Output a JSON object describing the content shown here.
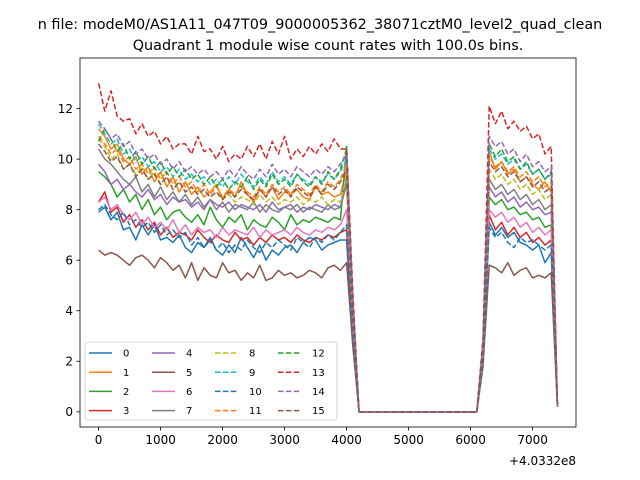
{
  "suptitle": "n file: modeM0/AS1A11_047T09_9000005362_38071cztM0_level2_quad_clean",
  "chart_data": {
    "type": "line",
    "title": "Quadrant 1 module wise count rates with 100.0s bins.",
    "xlabel": "",
    "ylabel": "",
    "x_offset_label": "+4.0332e8",
    "xlim": [
      -300,
      7700
    ],
    "ylim": [
      -0.6,
      14.0
    ],
    "xticks": [
      0,
      1000,
      2000,
      3000,
      4000,
      5000,
      6000,
      7000
    ],
    "xtick_labels": [
      "0",
      "1000",
      "2000",
      "3000",
      "4000",
      "5000",
      "6000",
      "7000"
    ],
    "yticks": [
      0,
      2,
      4,
      6,
      8,
      10,
      12
    ],
    "ytick_labels": [
      "0",
      "2",
      "4",
      "6",
      "8",
      "10",
      "12"
    ],
    "legend": {
      "position": "lower-left",
      "ncol": 4
    },
    "x": [
      0,
      100,
      200,
      300,
      400,
      500,
      600,
      700,
      800,
      900,
      1000,
      1100,
      1200,
      1300,
      1400,
      1500,
      1600,
      1700,
      1800,
      1900,
      2000,
      2100,
      2200,
      2300,
      2400,
      2500,
      2600,
      2700,
      2800,
      2900,
      3000,
      3100,
      3200,
      3300,
      3400,
      3500,
      3600,
      3700,
      3800,
      3900,
      4000,
      4100,
      4200,
      6100,
      6200,
      6300,
      6400,
      6500,
      6600,
      6700,
      6800,
      6900,
      7000,
      7100,
      7200,
      7300,
      7400
    ],
    "series": [
      {
        "name": "0",
        "color": "#1f77b4",
        "dash": "solid",
        "values": [
          7.9,
          8.1,
          7.6,
          7.9,
          7.2,
          7.3,
          6.8,
          7.4,
          7.0,
          7.4,
          6.8,
          6.9,
          6.7,
          7.0,
          6.5,
          6.3,
          6.7,
          6.5,
          6.9,
          6.4,
          6.2,
          6.6,
          6.3,
          6.9,
          6.5,
          6.1,
          6.6,
          6.0,
          6.4,
          6.2,
          6.5,
          6.6,
          6.3,
          6.7,
          6.9,
          6.8,
          6.4,
          6.6,
          6.7,
          6.8,
          6.8,
          3.0,
          0.0,
          0.0,
          2.0,
          7.5,
          7.0,
          7.3,
          6.9,
          7.1,
          6.7,
          6.6,
          6.4,
          6.6,
          5.9,
          6.3,
          0.2
        ]
      },
      {
        "name": "1",
        "color": "#ff7f0e",
        "dash": "solid",
        "values": [
          11.2,
          10.9,
          10.4,
          10.6,
          10.0,
          9.8,
          10.1,
          9.4,
          9.7,
          9.1,
          9.5,
          8.9,
          9.3,
          8.7,
          9.1,
          8.6,
          8.9,
          8.5,
          8.7,
          9.0,
          8.4,
          8.8,
          8.5,
          9.1,
          8.6,
          8.3,
          8.8,
          8.5,
          8.9,
          8.4,
          8.7,
          8.6,
          8.8,
          8.5,
          8.4,
          8.9,
          8.6,
          8.7,
          8.5,
          8.6,
          9.5,
          4.2,
          0.0,
          0.0,
          2.5,
          10.3,
          9.6,
          9.9,
          9.4,
          9.6,
          9.1,
          9.3,
          9.0,
          8.8,
          9.1,
          8.7,
          0.3
        ]
      },
      {
        "name": "2",
        "color": "#2ca02c",
        "dash": "solid",
        "values": [
          9.5,
          9.3,
          9.0,
          8.5,
          8.8,
          8.3,
          8.6,
          8.0,
          8.4,
          7.8,
          8.1,
          7.6,
          7.9,
          8.0,
          7.7,
          7.5,
          7.8,
          7.4,
          8.1,
          7.6,
          7.3,
          7.7,
          7.5,
          7.8,
          7.2,
          7.6,
          7.4,
          7.3,
          7.7,
          7.5,
          7.2,
          7.8,
          7.4,
          7.6,
          7.5,
          7.7,
          7.6,
          7.5,
          7.7,
          7.6,
          10.5,
          4.0,
          0.0,
          0.0,
          2.3,
          8.5,
          8.2,
          8.4,
          8.0,
          8.1,
          7.8,
          7.9,
          7.6,
          7.7,
          7.3,
          7.4,
          0.3
        ]
      },
      {
        "name": "3",
        "color": "#d62728",
        "dash": "solid",
        "values": [
          8.3,
          8.7,
          7.9,
          8.1,
          7.5,
          7.8,
          7.3,
          7.6,
          7.2,
          7.5,
          7.0,
          7.3,
          6.9,
          7.1,
          7.0,
          6.8,
          7.2,
          6.9,
          6.7,
          7.0,
          6.8,
          6.7,
          7.1,
          6.8,
          6.9,
          6.6,
          6.9,
          6.7,
          7.0,
          6.8,
          6.9,
          6.7,
          7.0,
          6.8,
          6.7,
          6.9,
          6.8,
          7.0,
          6.9,
          7.1,
          7.2,
          3.2,
          0.0,
          0.0,
          2.0,
          7.8,
          7.2,
          7.5,
          7.0,
          7.3,
          6.9,
          7.1,
          6.7,
          6.9,
          6.6,
          6.8,
          0.2
        ]
      },
      {
        "name": "4",
        "color": "#9467bd",
        "dash": "solid",
        "values": [
          9.8,
          9.5,
          9.0,
          9.2,
          8.8,
          9.0,
          8.7,
          8.5,
          8.8,
          8.4,
          8.6,
          8.2,
          8.5,
          8.3,
          8.4,
          8.1,
          8.3,
          8.0,
          8.4,
          8.2,
          8.1,
          8.3,
          8.0,
          8.2,
          8.1,
          8.0,
          8.2,
          7.9,
          8.3,
          8.0,
          8.1,
          8.2,
          7.9,
          8.1,
          8.0,
          8.2,
          8.1,
          8.0,
          8.2,
          8.1,
          9.2,
          3.9,
          0.0,
          0.0,
          2.4,
          8.9,
          8.5,
          8.7,
          8.3,
          8.5,
          8.1,
          8.3,
          8.0,
          8.1,
          7.8,
          7.9,
          0.3
        ]
      },
      {
        "name": "5",
        "color": "#8c564b",
        "dash": "solid",
        "values": [
          6.4,
          6.2,
          6.3,
          6.2,
          6.0,
          5.8,
          6.1,
          6.2,
          6.0,
          5.7,
          6.1,
          5.9,
          5.6,
          5.8,
          5.3,
          5.9,
          5.2,
          5.7,
          5.4,
          5.3,
          5.9,
          5.5,
          5.6,
          5.2,
          5.5,
          5.3,
          5.8,
          5.2,
          5.3,
          5.6,
          5.4,
          5.5,
          5.3,
          5.4,
          5.6,
          5.5,
          5.3,
          5.7,
          5.8,
          5.6,
          5.9,
          2.6,
          0.0,
          0.0,
          1.8,
          5.8,
          5.7,
          5.5,
          5.9,
          5.4,
          5.6,
          5.7,
          5.3,
          5.4,
          5.3,
          5.5,
          0.2
        ]
      },
      {
        "name": "6",
        "color": "#e377c2",
        "dash": "solid",
        "values": [
          8.3,
          8.5,
          8.0,
          8.2,
          7.8,
          7.6,
          7.9,
          7.4,
          7.7,
          7.3,
          7.5,
          7.2,
          7.6,
          7.1,
          7.4,
          7.0,
          7.3,
          7.1,
          7.2,
          6.9,
          7.3,
          7.0,
          7.2,
          7.1,
          7.0,
          7.3,
          6.9,
          7.2,
          7.0,
          7.1,
          7.2,
          7.0,
          7.3,
          7.1,
          7.0,
          7.2,
          7.1,
          7.3,
          7.2,
          7.4,
          8.0,
          3.4,
          0.0,
          0.0,
          2.1,
          8.0,
          7.7,
          7.9,
          7.5,
          7.7,
          7.3,
          7.5,
          7.1,
          7.3,
          7.0,
          7.2,
          0.2
        ]
      },
      {
        "name": "7",
        "color": "#7f7f7f",
        "dash": "solid",
        "values": [
          10.4,
          10.0,
          9.8,
          9.5,
          9.2,
          9.0,
          9.3,
          8.7,
          9.0,
          8.5,
          8.9,
          8.4,
          8.7,
          8.3,
          8.6,
          8.2,
          8.5,
          8.1,
          8.4,
          8.0,
          8.3,
          7.9,
          8.2,
          8.1,
          8.0,
          8.3,
          7.9,
          8.2,
          8.0,
          7.9,
          8.1,
          8.0,
          8.2,
          7.9,
          8.1,
          8.0,
          7.9,
          8.2,
          8.0,
          8.1,
          9.0,
          3.8,
          0.0,
          0.0,
          2.3,
          9.2,
          8.8,
          9.0,
          8.6,
          8.8,
          8.4,
          8.6,
          8.2,
          8.4,
          8.0,
          8.2,
          0.3
        ]
      },
      {
        "name": "8",
        "color": "#bcbd22",
        "dash": "dashed",
        "values": [
          10.8,
          10.5,
          10.0,
          10.2,
          9.6,
          9.8,
          9.4,
          9.7,
          9.2,
          9.5,
          9.0,
          9.3,
          8.8,
          9.1,
          8.7,
          8.9,
          8.6,
          8.8,
          8.5,
          8.7,
          8.4,
          8.6,
          8.3,
          8.5,
          8.4,
          8.2,
          8.6,
          8.3,
          8.5,
          8.2,
          8.4,
          8.3,
          8.5,
          8.2,
          8.4,
          8.3,
          8.5,
          8.2,
          8.4,
          8.3,
          9.3,
          4.0,
          0.0,
          0.0,
          2.4,
          9.6,
          9.2,
          9.4,
          9.0,
          9.2,
          8.8,
          9.0,
          8.6,
          8.8,
          8.4,
          8.6,
          0.3
        ]
      },
      {
        "name": "9",
        "color": "#17becf",
        "dash": "dashed",
        "values": [
          11.4,
          11.0,
          10.6,
          10.8,
          10.2,
          10.4,
          9.9,
          10.1,
          9.7,
          9.9,
          9.5,
          9.7,
          9.3,
          9.6,
          9.2,
          9.4,
          9.1,
          9.3,
          9.0,
          9.2,
          8.9,
          9.3,
          9.0,
          9.4,
          9.1,
          8.9,
          9.3,
          9.0,
          9.5,
          9.1,
          9.3,
          9.0,
          9.4,
          9.2,
          9.0,
          9.3,
          9.1,
          9.4,
          9.2,
          9.5,
          10.0,
          4.3,
          0.0,
          0.0,
          2.6,
          10.4,
          10.0,
          10.2,
          9.8,
          10.0,
          9.6,
          9.8,
          9.4,
          9.6,
          9.2,
          9.4,
          0.3
        ]
      },
      {
        "name": "10",
        "color": "#1f77b4",
        "dash": "dashed",
        "values": [
          8.0,
          8.2,
          7.8,
          7.6,
          7.9,
          7.4,
          7.6,
          7.3,
          7.5,
          7.1,
          7.4,
          7.0,
          7.2,
          6.9,
          7.1,
          6.6,
          6.9,
          6.5,
          6.8,
          6.4,
          6.7,
          6.3,
          6.6,
          6.4,
          6.8,
          6.5,
          6.3,
          6.7,
          6.5,
          6.8,
          6.6,
          6.4,
          6.9,
          6.7,
          6.5,
          6.9,
          6.7,
          7.0,
          6.8,
          7.1,
          7.4,
          3.1,
          0.0,
          0.0,
          1.9,
          7.3,
          6.9,
          7.1,
          6.7,
          6.5,
          6.9,
          6.7,
          6.8,
          6.6,
          6.4,
          6.6,
          0.2
        ]
      },
      {
        "name": "11",
        "color": "#ff7f0e",
        "dash": "dashed",
        "values": [
          10.9,
          10.6,
          10.2,
          10.4,
          9.9,
          10.1,
          9.6,
          9.8,
          9.4,
          9.7,
          9.2,
          9.5,
          9.0,
          9.3,
          8.9,
          9.1,
          8.7,
          9.0,
          8.6,
          8.9,
          8.5,
          8.8,
          8.6,
          8.9,
          8.7,
          8.5,
          8.9,
          8.6,
          9.0,
          8.7,
          8.9,
          8.6,
          9.0,
          8.8,
          8.6,
          9.0,
          8.7,
          9.1,
          8.9,
          9.2,
          9.8,
          4.1,
          0.0,
          0.0,
          2.5,
          10.1,
          9.7,
          9.9,
          9.5,
          9.7,
          9.3,
          9.5,
          9.1,
          9.3,
          8.9,
          9.1,
          0.3
        ]
      },
      {
        "name": "12",
        "color": "#2ca02c",
        "dash": "dashed",
        "values": [
          10.7,
          11.2,
          10.8,
          10.3,
          10.6,
          10.0,
          10.3,
          9.8,
          10.1,
          9.6,
          9.9,
          9.4,
          9.7,
          9.3,
          9.6,
          9.2,
          9.4,
          9.0,
          9.3,
          8.9,
          9.2,
          8.8,
          9.1,
          8.9,
          9.3,
          8.8,
          9.2,
          8.9,
          9.4,
          9.0,
          9.2,
          8.9,
          9.4,
          9.1,
          8.9,
          9.3,
          9.0,
          9.5,
          9.2,
          9.6,
          10.4,
          4.4,
          0.0,
          0.0,
          2.6,
          10.6,
          10.1,
          10.4,
          9.9,
          10.1,
          9.6,
          9.9,
          9.4,
          9.6,
          9.2,
          9.5,
          0.3
        ]
      },
      {
        "name": "13",
        "color": "#d62728",
        "dash": "dashed",
        "values": [
          13.0,
          11.9,
          12.7,
          11.7,
          11.5,
          11.6,
          11.0,
          11.4,
          10.9,
          11.1,
          10.6,
          10.9,
          10.4,
          10.6,
          10.6,
          10.2,
          10.9,
          10.3,
          10.4,
          10.0,
          10.5,
          9.9,
          10.2,
          10.0,
          10.5,
          10.1,
          10.6,
          10.0,
          10.7,
          10.2,
          10.9,
          10.0,
          10.4,
          10.1,
          10.5,
          10.2,
          10.6,
          10.3,
          10.8,
          10.4,
          10.4,
          4.8,
          0.0,
          0.0,
          2.9,
          12.1,
          11.4,
          11.9,
          11.2,
          11.5,
          11.1,
          11.3,
          10.8,
          11.0,
          10.2,
          10.5,
          0.3
        ]
      },
      {
        "name": "14",
        "color": "#9467bd",
        "dash": "dashed",
        "values": [
          11.5,
          11.2,
          10.8,
          11.0,
          10.5,
          10.7,
          10.2,
          10.4,
          10.0,
          10.2,
          9.8,
          10.0,
          9.6,
          9.9,
          9.5,
          9.7,
          9.4,
          9.6,
          9.3,
          9.5,
          9.2,
          9.6,
          9.3,
          9.7,
          9.4,
          9.2,
          9.6,
          9.3,
          9.8,
          9.4,
          9.6,
          9.3,
          9.7,
          9.5,
          9.3,
          9.6,
          9.4,
          9.7,
          9.5,
          9.8,
          10.2,
          4.5,
          0.0,
          0.0,
          2.7,
          10.9,
          10.5,
          10.7,
          10.2,
          10.4,
          9.9,
          10.2,
          9.7,
          9.9,
          9.5,
          9.7,
          0.3
        ]
      },
      {
        "name": "15",
        "color": "#8c564b",
        "dash": "dashed",
        "values": [
          10.6,
          10.3,
          9.9,
          10.1,
          9.6,
          9.8,
          9.3,
          9.6,
          9.2,
          9.4,
          9.0,
          9.3,
          8.8,
          9.1,
          8.7,
          8.9,
          8.6,
          8.8,
          8.5,
          8.7,
          8.4,
          8.7,
          8.5,
          8.8,
          8.6,
          8.4,
          8.8,
          8.5,
          8.9,
          8.6,
          8.8,
          8.5,
          8.9,
          8.7,
          8.5,
          8.9,
          8.6,
          9.0,
          8.8,
          9.1,
          9.6,
          4.0,
          0.0,
          0.0,
          2.4,
          9.9,
          9.5,
          9.7,
          9.3,
          9.5,
          9.1,
          9.3,
          8.9,
          9.1,
          8.7,
          8.9,
          0.3
        ]
      }
    ]
  }
}
